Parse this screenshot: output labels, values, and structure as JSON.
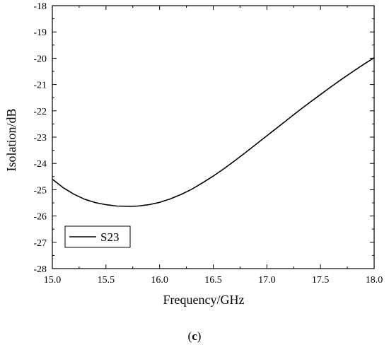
{
  "chart_data": {
    "type": "line",
    "title": "",
    "xlabel": "Frequency/GHz",
    "ylabel": "Isolation/dB",
    "xlim": [
      15.0,
      18.0
    ],
    "ylim": [
      -28,
      -18
    ],
    "x_ticks": [
      "15.0",
      "15.5",
      "16.0",
      "16.5",
      "17.0",
      "17.5",
      "18.0"
    ],
    "y_ticks": [
      "-28",
      "-27",
      "-26",
      "-25",
      "-24",
      "-23",
      "-22",
      "-21",
      "-20",
      "-19",
      "-18"
    ],
    "grid": false,
    "legend_position": "lower-left",
    "series": [
      {
        "name": "S23",
        "color": "#000000",
        "x": [
          15.0,
          15.1,
          15.2,
          15.3,
          15.4,
          15.5,
          15.6,
          15.7,
          15.75,
          15.8,
          15.9,
          16.0,
          16.1,
          16.2,
          16.3,
          16.4,
          16.5,
          16.6,
          16.7,
          16.8,
          16.9,
          17.0,
          17.1,
          17.2,
          17.3,
          17.4,
          17.5,
          17.6,
          17.7,
          17.8,
          17.9,
          18.0
        ],
        "y": [
          -24.6,
          -24.92,
          -25.17,
          -25.36,
          -25.49,
          -25.57,
          -25.62,
          -25.63,
          -25.63,
          -25.62,
          -25.57,
          -25.48,
          -25.35,
          -25.18,
          -24.98,
          -24.74,
          -24.48,
          -24.2,
          -23.9,
          -23.59,
          -23.27,
          -22.95,
          -22.63,
          -22.31,
          -21.99,
          -21.68,
          -21.38,
          -21.08,
          -20.79,
          -20.51,
          -20.24,
          -19.98
        ]
      }
    ]
  },
  "caption": {
    "open": "(",
    "letter": "c",
    "close": ")"
  }
}
